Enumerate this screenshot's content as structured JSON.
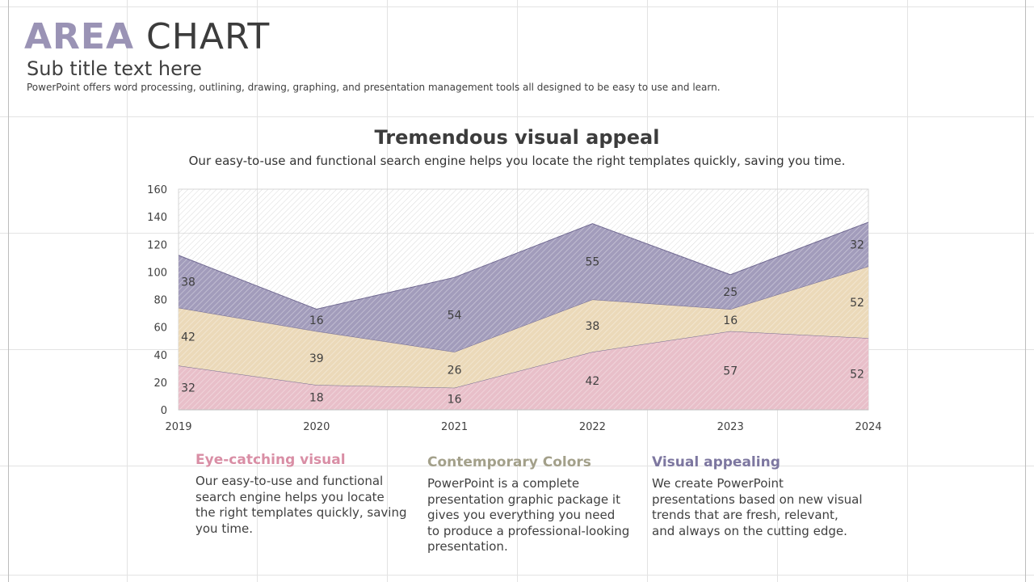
{
  "header": {
    "title_word1": "AREA",
    "title_word2": "CHART",
    "subtitle": "Sub title text here",
    "description": "PowerPoint offers word processing, outlining, drawing, graphing, and presentation management tools all designed to be easy to use and learn."
  },
  "chart_heading": {
    "title": "Tremendous visual appeal",
    "subtitle": "Our easy-to-use and functional search engine helps you locate the right templates quickly, saving you time."
  },
  "chart_data": {
    "type": "area",
    "stacked": true,
    "x": [
      "2019",
      "2020",
      "2021",
      "2022",
      "2023",
      "2024"
    ],
    "ylim": [
      0,
      160
    ],
    "yticks": [
      0,
      20,
      40,
      60,
      80,
      100,
      120,
      140,
      160
    ],
    "data_labels": true,
    "series": [
      {
        "values": [
          32,
          18,
          16,
          42,
          57,
          52
        ],
        "color": "#e8bfc9"
      },
      {
        "values": [
          42,
          39,
          26,
          38,
          16,
          52
        ],
        "color": "#ebd9b9"
      },
      {
        "values": [
          38,
          16,
          54,
          55,
          25,
          32
        ],
        "color": "#a29cbb"
      }
    ]
  },
  "cards": [
    {
      "heading": "Eye-catching visual",
      "color": "#d98ea5",
      "body": "Our easy-to-use and functional search engine helps you locate the right templates quickly, saving you time."
    },
    {
      "heading": "Contemporary Colors",
      "color": "#a3a08a",
      "body": "PowerPoint is a complete presentation graphic package it gives you everything you need to produce a professional-looking presentation."
    },
    {
      "heading": "Visual appealing",
      "color": "#7d77a0",
      "body": "We create PowerPoint presentations based on new visual trends that are fresh, relevant, and always on the cutting edge."
    }
  ]
}
